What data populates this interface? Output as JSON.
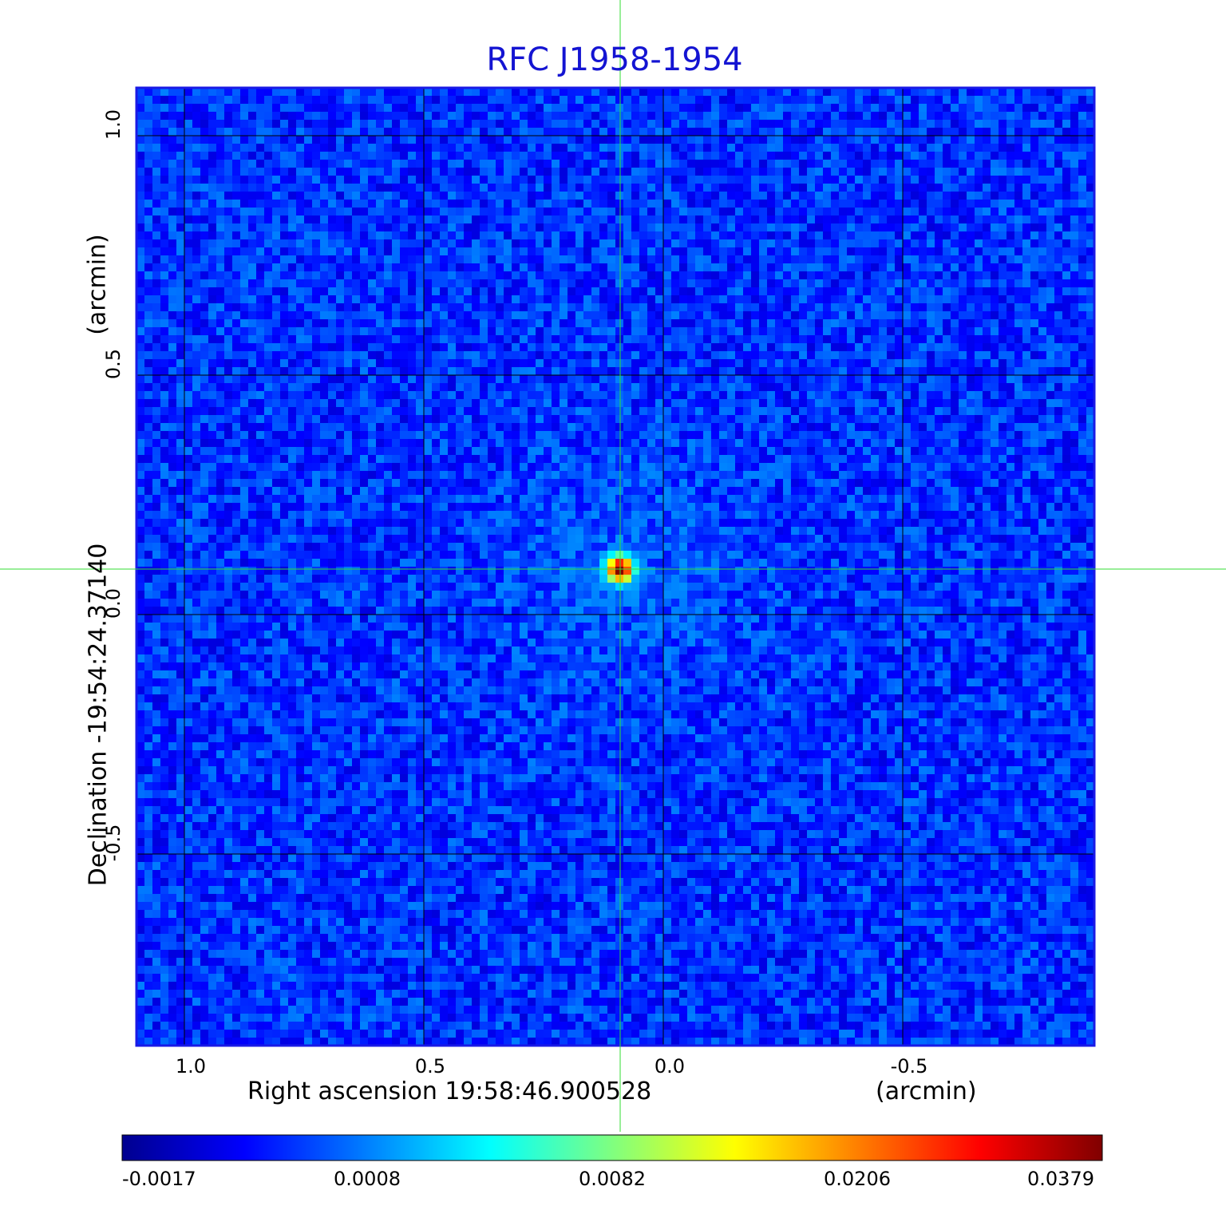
{
  "chart_data": {
    "type": "heatmap",
    "title": "RFC J1958-1954",
    "xlabel": "Right ascension  19:58:46.900528",
    "xunit": "(arcmin)",
    "ylabel": "Declination  -19:54:24.37140",
    "yunit": "(arcmin)",
    "xlim": [
      1.1,
      -0.9
    ],
    "ylim": [
      -0.9,
      1.1
    ],
    "x_ticks": [
      "1.0",
      "0.5",
      "0.0",
      "-0.5"
    ],
    "x_tick_values": [
      1.0,
      0.5,
      0.0,
      -0.5
    ],
    "y_ticks": [
      "1.0",
      "0.5",
      "0.0",
      "-0.5"
    ],
    "y_tick_values": [
      1.0,
      0.5,
      0.0,
      -0.5
    ],
    "grid": true,
    "crosshair": {
      "x": 0.09,
      "y": 0.095,
      "color": "#33dd33"
    },
    "source_peak": {
      "x": 0.09,
      "y": 0.095,
      "value": 0.0379
    },
    "colorbar": {
      "colormap": "jet",
      "ticks": [
        "-0.0017",
        "0.0008",
        "0.0082",
        "0.0206",
        "0.0379"
      ],
      "values": [
        -0.0017,
        0.0008,
        0.0082,
        0.0206,
        0.0379
      ]
    },
    "background_level": 0.0
  }
}
